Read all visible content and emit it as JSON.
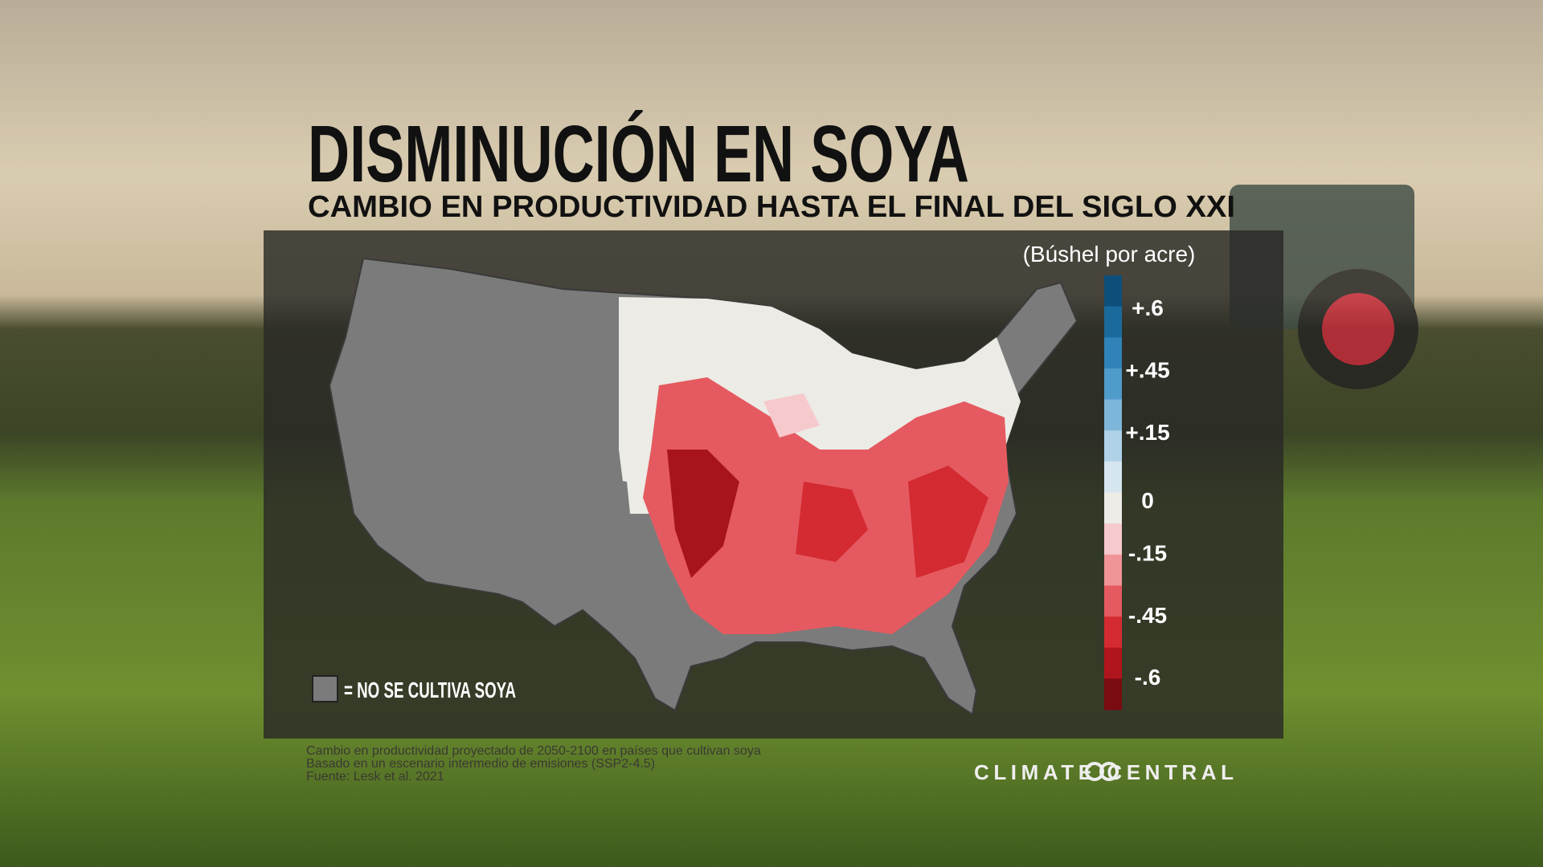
{
  "header": {
    "title": "DISMINUCIÓN EN SOYA",
    "subtitle": "CAMBIO EN PRODUCTIVIDAD HASTA EL FINAL DEL SIGLO XXI"
  },
  "legend": {
    "unit": "(Búshel por acre)",
    "ticks": [
      "+.6",
      "+.45",
      "+.15",
      "0",
      "-.15",
      "-.45",
      "-.6"
    ],
    "colors": [
      "#0d4f7a",
      "#1a6a9c",
      "#2f83b8",
      "#4f9bca",
      "#7db6d9",
      "#b0d2e8",
      "#d6e6f0",
      "#ecebe6",
      "#f6c9cc",
      "#f09498",
      "#e55a60",
      "#d42a32",
      "#b0141d",
      "#7a0b10"
    ],
    "no_crop_label": "= NO SE CULTIVA SOYA"
  },
  "notes": [
    "Cambio en productividad proyectado de 2050-2100 en países que cultivan soya",
    "Basado en un escenario intermedio de emisiones (SSP2-4.5)",
    "Fuente: Lesk et al. 2021"
  ],
  "brand": "CLIMATE CENTRAL"
}
